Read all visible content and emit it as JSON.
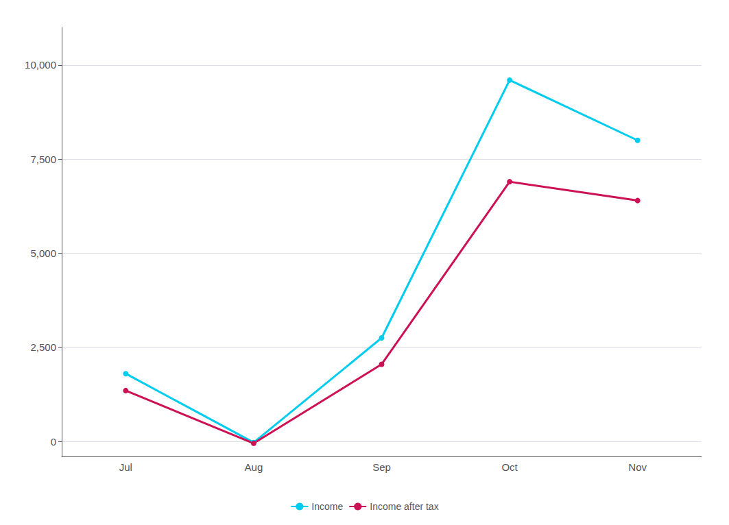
{
  "chart_data": {
    "type": "line",
    "categories": [
      "Jul",
      "Aug",
      "Sep",
      "Oct",
      "Nov"
    ],
    "series": [
      {
        "name": "Income",
        "color": "#00ccee",
        "values": [
          1800,
          -30,
          2750,
          9600,
          8000
        ]
      },
      {
        "name": "Income after tax",
        "color": "#cc1155",
        "values": [
          1350,
          -50,
          2050,
          6900,
          6400
        ]
      }
    ],
    "ylim": [
      -400,
      11000
    ],
    "yticks": [
      0,
      {
        "value": 2500,
        "label": "2,500"
      },
      {
        "value": 5000,
        "label": "5,000"
      },
      {
        "value": 7500,
        "label": "7,500"
      },
      {
        "value": 10000,
        "label": "10,000"
      }
    ],
    "grid": true,
    "legend": "bottom",
    "marker": "circle"
  }
}
